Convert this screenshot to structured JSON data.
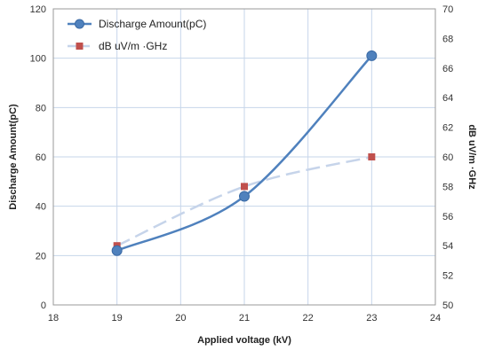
{
  "chart_data": {
    "type": "line",
    "x": [
      19,
      21,
      23
    ],
    "xlabel": "Applied voltage (kV)",
    "xlim": [
      18,
      24
    ],
    "xticks": [
      "18",
      "19",
      "20",
      "21",
      "22",
      "23",
      "24"
    ],
    "ylabel": "Discharge Amount(pC)",
    "ylim": [
      0,
      120
    ],
    "yticks": [
      "0",
      "20",
      "40",
      "60",
      "80",
      "100",
      "120"
    ],
    "y2label": "dB uV/m ·GHz",
    "y2lim": [
      50,
      70
    ],
    "y2ticks": [
      "50",
      "52",
      "54",
      "56",
      "58",
      "60",
      "62",
      "64",
      "66",
      "68",
      "70"
    ],
    "grid": true,
    "legend_position": "top-left",
    "series": [
      {
        "name": "Discharge Amount(pC)",
        "axis": "left",
        "values": [
          22,
          44,
          101
        ],
        "color": "#4f81bd",
        "line_style": "solid",
        "marker": "circle"
      },
      {
        "name": "dB uV/m ·GHz",
        "axis": "right",
        "values": [
          54,
          58,
          60
        ],
        "color": "#c0504d",
        "line_color": "#c6d4ea",
        "line_style": "dashed",
        "marker": "square"
      }
    ]
  }
}
